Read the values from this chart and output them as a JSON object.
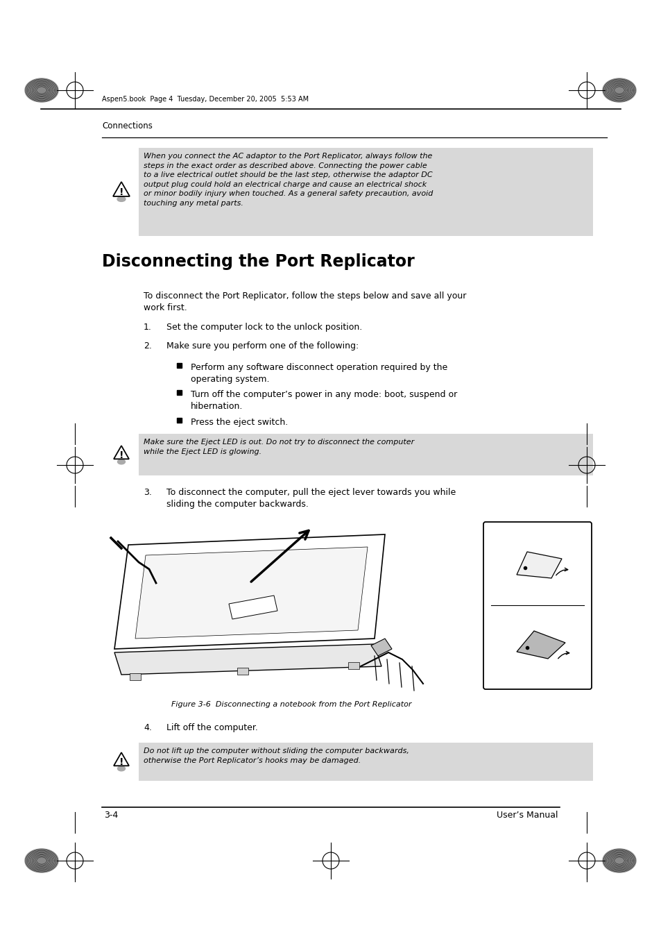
{
  "page_bg": "#ffffff",
  "header_text": "Aspen5.book  Page 4  Tuesday, December 20, 2005  5:53 AM",
  "section_label": "Connections",
  "warning_box1_text": "When you connect the AC adaptor to the Port Replicator, always follow the\nsteps in the exact order as described above. Connecting the power cable\nto a live electrical outlet should be the last step, otherwise the adaptor DC\noutput plug could hold an electrical charge and cause an electrical shock\nor minor bodily injury when touched. As a general safety precaution, avoid\ntouching any metal parts.",
  "warning_box1_bg": "#d8d8d8",
  "section_title": "Disconnecting the Port Replicator",
  "intro_text": "To disconnect the Port Replicator, follow the steps below and save all your\nwork first.",
  "step1": "Set the computer lock to the unlock position.",
  "step2": "Make sure you perform one of the following:",
  "bullet1": "Perform any software disconnect operation required by the\noperating system.",
  "bullet2": "Turn off the computer’s power in any mode: boot, suspend or\nhibernation.",
  "bullet3": "Press the eject switch.",
  "warning_box2_text": "Make sure the Eject LED is out. Do not try to disconnect the computer\nwhile the Eject LED is glowing.",
  "warning_box2_bg": "#d8d8d8",
  "step3": "To disconnect the computer, pull the eject lever towards you while\nsliding the computer backwards.",
  "figure_caption": "Figure 3-6  Disconnecting a notebook from the Port Replicator",
  "step4": "Lift off the computer.",
  "warning_box3_text": "Do not lift up the computer without sliding the computer backwards,\notherwise the Port Replicator’s hooks may be damaged.",
  "warning_box3_bg": "#d8d8d8",
  "footer_left": "3-4",
  "footer_right": "User’s Manual"
}
